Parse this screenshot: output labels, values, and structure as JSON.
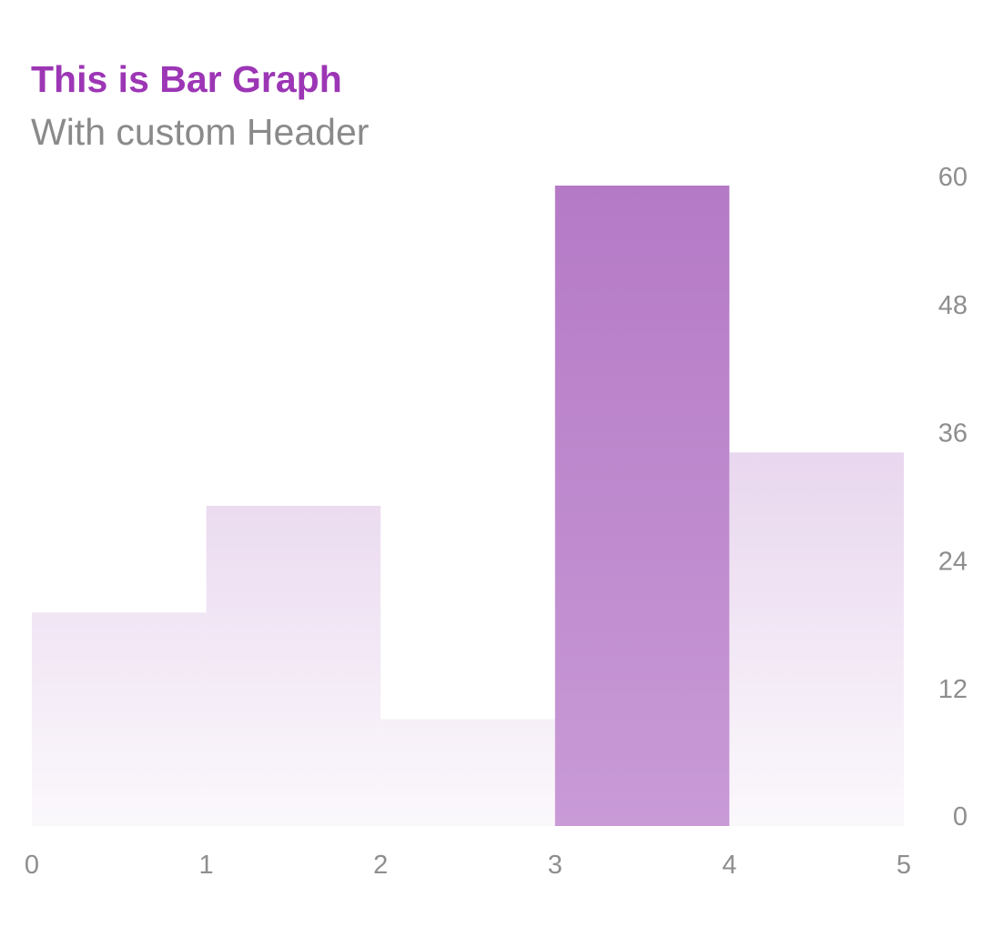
{
  "header": {
    "title": "This is Bar Graph",
    "subtitle": "With custom Header"
  },
  "colors": {
    "title": "#9c36b5",
    "subtitle": "#8a8a8a",
    "bar_selected_top": "#b57ac6",
    "bar_selected_bottom": "#c89ad6",
    "bar_unselected_top": "#e8d6ee",
    "bar_unselected_bottom": "#fbf8fc",
    "tick_label": "#8e8e8e"
  },
  "chart_data": {
    "type": "bar",
    "x_ticks": [
      "0",
      "1",
      "2",
      "3",
      "4",
      "5"
    ],
    "bars": [
      {
        "x_start": 0,
        "x_end": 1,
        "value": 20
      },
      {
        "x_start": 1,
        "x_end": 2,
        "value": 30
      },
      {
        "x_start": 2,
        "x_end": 3,
        "value": 10
      },
      {
        "x_start": 3,
        "x_end": 4,
        "value": 60,
        "highlighted": true
      },
      {
        "x_start": 4,
        "x_end": 5,
        "value": 35
      }
    ],
    "y_ticks": [
      "0",
      "12",
      "24",
      "36",
      "48",
      "60"
    ],
    "xlim": [
      0,
      5
    ],
    "ylim": [
      0,
      60
    ],
    "y_axis_position": "right",
    "grid": false,
    "legend": "none"
  }
}
